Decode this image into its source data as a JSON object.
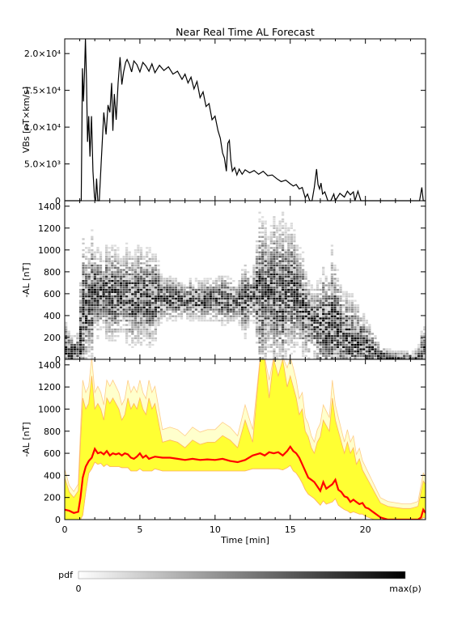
{
  "title": "Near Real Time AL Forecast",
  "chart_data": [
    {
      "type": "line",
      "ylabel": "VBs [nT×km/s]",
      "xlim": [
        0,
        24
      ],
      "ylim": [
        0,
        22000
      ],
      "yticks": [
        "0",
        "5.0×10³",
        "1.0×10⁴",
        "1.5×10⁴",
        "2.0×10⁴"
      ],
      "yticks_values": [
        0,
        5000,
        10000,
        15000,
        20000
      ],
      "series": [
        {
          "color": "#000000",
          "x": [
            0,
            1.1,
            1.18,
            1.25,
            1.32,
            1.38,
            1.45,
            1.52,
            1.6,
            1.68,
            1.78,
            1.88,
            1.98,
            2.05,
            2.12,
            2.2,
            2.3,
            2.42,
            2.6,
            2.75,
            2.88,
            3.0,
            3.12,
            3.2,
            3.3,
            3.42,
            3.55,
            3.68,
            3.8,
            3.92,
            4.05,
            4.15,
            4.3,
            4.45,
            4.6,
            4.8,
            5.0,
            5.2,
            5.4,
            5.6,
            5.8,
            6.0,
            6.3,
            6.6,
            6.9,
            7.2,
            7.5,
            7.8,
            8.0,
            8.2,
            8.4,
            8.6,
            8.8,
            9.0,
            9.2,
            9.4,
            9.6,
            9.8,
            10.0,
            10.2,
            10.35,
            10.5,
            10.62,
            10.75,
            10.85,
            10.95,
            11.05,
            11.15,
            11.3,
            11.45,
            11.6,
            11.8,
            12.0,
            12.3,
            12.6,
            12.9,
            13.2,
            13.5,
            13.8,
            14.1,
            14.4,
            14.7,
            15.0,
            15.2,
            15.4,
            15.6,
            15.8,
            16.0,
            16.15,
            16.3,
            16.45,
            16.6,
            16.75,
            16.85,
            16.95,
            17.05,
            17.15,
            17.3,
            17.5,
            17.7,
            17.9,
            18.0,
            18.3,
            18.6,
            18.8,
            19.0,
            19.2,
            19.3,
            19.5,
            19.7,
            19.9,
            20.05,
            20.2,
            20.5,
            21.0,
            22.0,
            23.0,
            23.6,
            23.75,
            23.85,
            24.0
          ],
          "y": [
            0,
            0,
            18000,
            13500,
            17500,
            22000,
            16500,
            8000,
            11500,
            6000,
            11500,
            4000,
            500,
            0,
            3000,
            0,
            0,
            5000,
            12000,
            9000,
            13000,
            12000,
            16000,
            9500,
            14500,
            11000,
            16000,
            19500,
            15800,
            17500,
            18800,
            19200,
            18500,
            17500,
            19000,
            18500,
            17500,
            18800,
            18300,
            17600,
            18600,
            17400,
            18400,
            17700,
            18200,
            17200,
            17600,
            16500,
            17200,
            16000,
            16800,
            15200,
            16200,
            14000,
            14800,
            12800,
            13200,
            11000,
            11500,
            9500,
            8500,
            6500,
            5800,
            4000,
            7800,
            8200,
            5500,
            4000,
            4500,
            3500,
            4300,
            3600,
            4200,
            3800,
            4100,
            3600,
            4000,
            3400,
            3500,
            3000,
            2600,
            2800,
            2300,
            2000,
            2200,
            1600,
            1800,
            400,
            900,
            0,
            0,
            1800,
            4300,
            2200,
            1600,
            2400,
            900,
            1200,
            0,
            0,
            900,
            0,
            1000,
            500,
            1300,
            800,
            1200,
            0,
            1300,
            0,
            0,
            0,
            0,
            0,
            0,
            0,
            0,
            0,
            1800,
            0,
            0
          ]
        }
      ]
    },
    {
      "type": "heatmap",
      "ylabel": "-AL [nT]",
      "xlim": [
        0,
        24
      ],
      "ylim": [
        0,
        1450
      ],
      "yticks": [
        "0",
        "200",
        "400",
        "600",
        "800",
        "1000",
        "1200",
        "1400"
      ],
      "yticks_values": [
        0,
        200,
        400,
        600,
        800,
        1000,
        1200,
        1400
      ],
      "description_source": "probability density of -AL per time bin"
    },
    {
      "type": "area",
      "ylabel": "-AL [nT]",
      "xlabel": "Time [min]",
      "xlim": [
        0,
        24
      ],
      "ylim": [
        0,
        1450
      ],
      "xticks": [
        "0",
        "5",
        "10",
        "15",
        "20"
      ],
      "xticks_values": [
        0,
        5,
        10,
        15,
        20
      ],
      "yticks": [
        "0",
        "200",
        "400",
        "600",
        "800",
        "1000",
        "1200",
        "1400"
      ],
      "yticks_values": [
        0,
        200,
        400,
        600,
        800,
        1000,
        1200,
        1400
      ],
      "x": [
        0,
        0.3,
        0.6,
        0.9,
        1.05,
        1.2,
        1.4,
        1.6,
        1.8,
        2.0,
        2.2,
        2.4,
        2.6,
        2.8,
        3.0,
        3.2,
        3.4,
        3.6,
        3.8,
        4.0,
        4.2,
        4.4,
        4.6,
        4.8,
        5.0,
        5.2,
        5.4,
        5.6,
        5.8,
        6.0,
        6.5,
        7.0,
        7.5,
        8.0,
        8.5,
        9.0,
        9.5,
        10.0,
        10.5,
        11.0,
        11.5,
        12.0,
        12.5,
        13.0,
        13.3,
        13.6,
        13.9,
        14.2,
        14.5,
        14.8,
        15.0,
        15.2,
        15.4,
        15.6,
        15.8,
        16.0,
        16.2,
        16.4,
        16.6,
        16.8,
        17.0,
        17.2,
        17.4,
        17.6,
        17.8,
        18.0,
        18.2,
        18.4,
        18.6,
        18.8,
        19.0,
        19.2,
        19.4,
        19.6,
        19.8,
        20.0,
        20.2,
        20.4,
        20.6,
        20.8,
        21.0,
        21.5,
        22.0,
        22.5,
        23.0,
        23.5,
        23.7,
        23.85,
        24.0
      ],
      "series": [
        {
          "name": "median",
          "color": "#ff0000",
          "values": [
            90,
            80,
            60,
            70,
            200,
            380,
            480,
            530,
            560,
            640,
            600,
            610,
            590,
            620,
            580,
            600,
            590,
            600,
            580,
            600,
            590,
            560,
            550,
            570,
            600,
            560,
            580,
            550,
            560,
            570,
            560,
            560,
            550,
            540,
            550,
            540,
            545,
            540,
            550,
            530,
            520,
            540,
            580,
            600,
            580,
            610,
            600,
            610,
            580,
            620,
            660,
            620,
            600,
            560,
            500,
            440,
            380,
            360,
            340,
            300,
            260,
            340,
            280,
            300,
            320,
            360,
            270,
            250,
            210,
            200,
            160,
            180,
            160,
            140,
            150,
            110,
            100,
            80,
            60,
            40,
            20,
            0,
            0,
            0,
            0,
            0,
            20,
            90,
            60
          ]
        },
        {
          "name": "upper",
          "color": "#ffff33",
          "values": [
            380,
            250,
            200,
            260,
            700,
            1100,
            1000,
            1050,
            1300,
            1000,
            1050,
            1000,
            900,
            1100,
            1050,
            1100,
            1050,
            1000,
            900,
            950,
            1100,
            1000,
            1050,
            1000,
            1100,
            1000,
            950,
            1100,
            1000,
            1050,
            700,
            720,
            700,
            650,
            720,
            680,
            700,
            700,
            760,
            720,
            650,
            900,
            700,
            1450,
            1450,
            1100,
            1450,
            1300,
            1450,
            1200,
            1300,
            1200,
            1100,
            950,
            1000,
            800,
            750,
            650,
            600,
            700,
            750,
            900,
            850,
            800,
            1100,
            900,
            800,
            700,
            600,
            700,
            600,
            650,
            500,
            550,
            450,
            400,
            350,
            300,
            250,
            200,
            150,
            120,
            110,
            100,
            100,
            120,
            250,
            350,
            320
          ]
        },
        {
          "name": "lower",
          "color": "#ffff33",
          "values": [
            0,
            0,
            0,
            0,
            0,
            40,
            250,
            420,
            460,
            520,
            500,
            510,
            480,
            500,
            480,
            480,
            480,
            480,
            470,
            470,
            470,
            440,
            440,
            440,
            460,
            440,
            440,
            440,
            440,
            460,
            440,
            440,
            440,
            440,
            440,
            440,
            440,
            440,
            440,
            440,
            440,
            440,
            460,
            460,
            460,
            460,
            460,
            460,
            450,
            470,
            490,
            440,
            420,
            380,
            330,
            270,
            230,
            210,
            190,
            160,
            130,
            170,
            140,
            150,
            160,
            190,
            130,
            110,
            90,
            80,
            60,
            70,
            60,
            50,
            50,
            30,
            20,
            10,
            0,
            0,
            0,
            0,
            0,
            0,
            0,
            0,
            0,
            20,
            10
          ]
        }
      ]
    }
  ],
  "colorbar": {
    "label": "pdf",
    "min_label": "0",
    "max_label": "max(p)"
  }
}
